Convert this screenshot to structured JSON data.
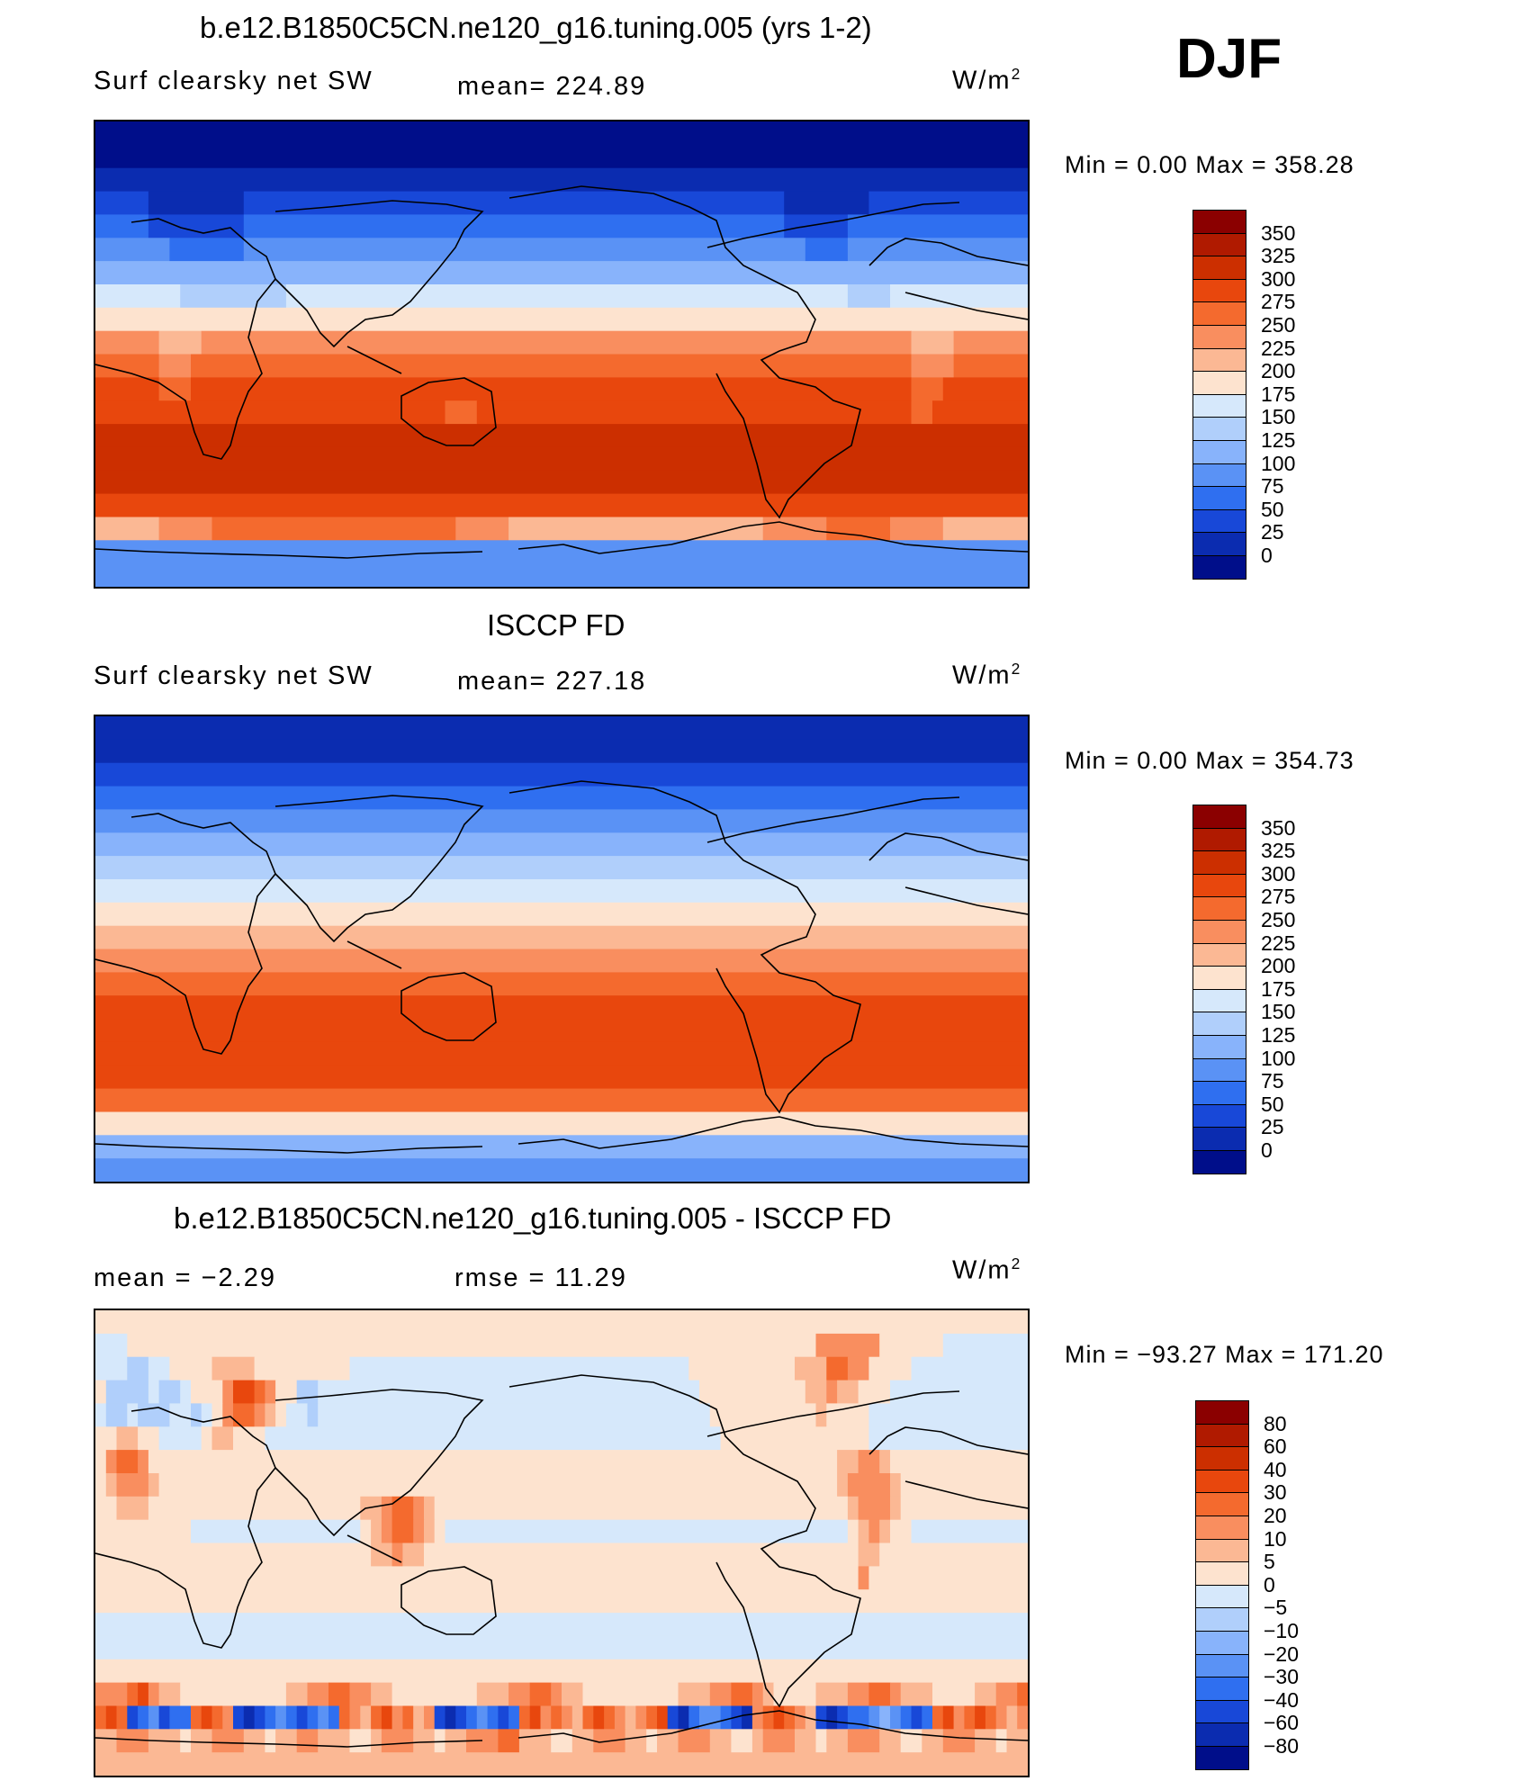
{
  "season": "DJF",
  "units": "W/m",
  "units_sup": "2",
  "panels": [
    {
      "title": "b.e12.B1850C5CN.ne120_g16.tuning.005 (yrs 1-2)",
      "variable": "Surf clearsky net SW",
      "stat": "mean=  224.89",
      "minmax": "Min  =       0.00  Max  =  358.28",
      "cbar_levels": [
        "350",
        "325",
        "300",
        "275",
        "250",
        "225",
        "200",
        "175",
        "150",
        "125",
        "100",
        "75",
        "50",
        "25",
        "0"
      ],
      "cbar_colors": [
        "#8b0000",
        "#b01a00",
        "#cc2f00",
        "#e8470d",
        "#f46a2e",
        "#f98e5f",
        "#fbb894",
        "#fde3cf",
        "#d6e8fb",
        "#b0cffb",
        "#88b3fb",
        "#5a92f5",
        "#2f6ff0",
        "#1848d8",
        "#0b2cb0",
        "#000e8a"
      ],
      "grid_rows": [
        "AAAAAAAAAAAAAAAAAAAAAAAAAAAAAAAAAAAAAAAAAAAAAAAAAAAAAAAAAAAAAAAAAAAAAAAAAAAAAAAAAAAAAAAA",
        "AAAAAAAAAAAAAAAAAAAAAAAAAAAAAAAAAAAAAAAAAAAAAAAAAAAAAAAAAAAAAAAAAAAAAAAAAAAAAAAAAAAAAAAA",
        "BBBBBBBBBBBBBBBBBBBBBBBBBBBBBBBBBBBBBBBBBBBBBBBBBBBBBBBBBBBBBBBBBBBBBBBBBBBBBBBBBBBBBBBB",
        "CCCCCBBBBBBBBBCCCCCCCCCCCCCCCCCCCCCCCCCCCCCCCCCCCCCCCCCCCCCCCCCCCBBBBBBBBCCCCCCCCCCCCCCC",
        "DDDDDCCCCCCCCCDDDDDDDDDDDDDDDDDDDDDDDDDDDDDDDDDDDDDDDDDDDDDDDDDDDCCCCCCDDDDDDDDDDDDDDDDD",
        "EEEEEEEDDDDDDDEEEEEEEEEEEEEEEEEEEEEEEEEEEEEEEEEEEEEEEEEEEEEEEEEEEEEDDDDEEEEEEEEEEEEEEEEEE",
        "FFFFFFFFFFFFFFFFFFFFFFFFFFFFFFFFFFFFFFFFFFFFFFFFFFFFFFFFFFFFFFFFFFFFFFFFFFFFFFFFFFFFFFFF",
        "HHHHHHHHGGGGGGGGGGHHHHHHHHHHHHHHHHHHHHHHHHHHHHHHHHHHHHHHHHHHHHHHHHHHHHHGGGGHHHHHHHHHHHHHH",
        "IIIIIIIIIIIIIIIIIIIIIIIIIIIIIIIIIIIIIIIIIIIIIIIIIIIIIIIIIIIIIIIIIIIIIIIIIIIIIIIIIIIIIIII",
        "KKKKKKJJJJKKKKKKKKKKKKKKKKKKKKKKKKKKKKKKKKKKKKKKKKKKKKKKKKKKKKKKKKKKKKKKKKKKKJJJJKKKKKKKKKK",
        "LLLLLLKKKLLLLLLLLLLLLLLLLLLLLLLLLLLLLLLLLLLLLLLLLLLLLLLLLLLLLLLLLLLLLLLLLLLLLKKKKLLLLLLLLLL",
        "MMMMMMLLLMMMMMMMMMMMMMMMMMMMMMMMMMMMMMMMMMMMMMMMMMMMMMMMMMMMMMMMMMMMMMMMMMMMMLLLMMMMMMMMMMMM",
        "MMMMMMMMMMMMMMMMMMMMMMMMMMMMMMMMMLLLMMMMMMMMMMMMMMMMMMMMMMMMMMMMMMMMMMMMMMMMMLLMMMMMMMMMMMMM",
        "NNNNNNNNNNNNNNNNNNNNNNNNNNNNNNNNNNNNNNNNNNNNNNNNNNNNNNNNNNNNNNNNNNNNNNNNNNNNNNNNNNNNNNNN",
        "NNNNNNNNNNNNNNNNNNNNNNNNNNNNNNNNNNNNNNNNNNNNNNNNNNNNNNNNNNNNNNNNNNNNNNNNNNNNNNNNNNNNNNNN",
        "NNNNNNNNNNNNNNNNNNNNNNNNNNNNNNNNNNNNNNNNNNNNNNNNNNNNNNNNNNNNNNNNNNNNNNNNNNNNNNNNNNNNNNNN",
        "MMMMMMMMMMMMMMMMMMMMMMMMMMMMMMMMMMMMMMMMMMMMMMMMMMMMMMMMMMMMMMMMMMMMMMMMMMMMMMMMMMMMMMMM",
        "JJJJJJKKKKKLLLLLLLLLLLLLLLLLLLLLLLKKKKKJJJJJJJJJJJJJJJJJJJJJJJJKKKKKKLLLLLLKKKKKJJJJJJJJJ",
        "EEEEEEEEEEEEEEEEEEEEEEEEEEEEEEEEEEEEEEEEEEEEEEEEEEEEEEEEEEEEEEEEEEEEEEEEEEEEEEEEEEEEEEEE",
        "EEEEEEEEEEEEEEEEEEEEEEEEEEEEEEEEEEEEEEEEEEEEEEEEEEEEEEEEEEEEEEEEEEEEEEEEEEEEEEEEEEEEEEEE"
      ]
    },
    {
      "title": "ISCCP FD",
      "variable": "Surf clearsky net SW",
      "stat": "mean=  227.18",
      "minmax": "Min  =       0.00  Max  =  354.73",
      "cbar_levels": [
        "350",
        "325",
        "300",
        "275",
        "250",
        "225",
        "200",
        "175",
        "150",
        "125",
        "100",
        "75",
        "50",
        "25",
        "0"
      ],
      "cbar_colors": [
        "#8b0000",
        "#b01a00",
        "#cc2f00",
        "#e8470d",
        "#f46a2e",
        "#f98e5f",
        "#fbb894",
        "#fde3cf",
        "#d6e8fb",
        "#b0cffb",
        "#88b3fb",
        "#5a92f5",
        "#2f6ff0",
        "#1848d8",
        "#0b2cb0",
        "#000e8a"
      ],
      "grid_rows": [
        "BBBBBBBBBBBBBBBBBBBBBBBBBBBBBBBBBBBBBBBBBBBBBBBBBBBBBBBBBBBBBBBBBBBBBBBBBBBBBBBBBBBBBBBB",
        "BBBBBBBBBBBBBBBBBBBBBBBBBBBBBBBBBBBBBBBBBBBBBBBBBBBBBBBBBBBBBBBBBBBBBBBBBBBBBBBBBBBBBBBB",
        "CCCCCCCCCCCCCCCCCCCCCCCCCCCCCCCCCCCCCCCCCCCCCCCCCCCCCCCCCCCCCCCCCCCCCCCCCCCCCCCCCCCCCCCC",
        "DDDDDDDDDDDDDDDDDDDDDDDDDDDDDDDDDDDDDDDDDDDDDDDDDDDDDDDDDDDDDDDDDDDDDDDDDDDDDDDDDDDDDDDD",
        "EEEEEEEEEEEEEEEEEEEEEEEEEEEEEEEEEEEEEEEEEEEEEEEEEEEEEEEEEEEEEEEEEEEEEEEEEEEEEEEEEEEEEEEE",
        "FFFFFFFFFFFFFFFFFFFFFFFFFFFFFFFFFFFFFFFFFFFFFFFFFFFFFFFFFFFFFFFFFFFFFFFFFFFFFFFFFFFFFFFF",
        "GGGGGGGGGGGGGGGGGGGGGGGGGGGGGGGGGGGGGGGGGGGGGGGGGGGGGGGGGGGGGGGGGGGGGGGGGGGGGGGGGGGGGGGG",
        "HHHHHHHHHHHHHHHHHHHHHHHHHHHHHHHHHHHHHHHHHHHHHHHHHHHHHHHHHHHHHHHHHHHHHHHHHHHHHHHHHHHHHHHH",
        "IIIIIIIIIIIIIIIIIIIIIIIIIIIIIIIIIIIIIIIIIIIIIIIIIIIIIIIIIIIIIIIIIIIIIIIIIIIIIIIIIIIIIIII",
        "JJJJJJJJJJJJJJJJJJJJJJJJJJJJJJJJJJJJJJJJJJJJJJJJJJJJJJJJJJJJJJJJJJJJJJJJJJJJJJJJJJJJJJJJ",
        "KKKKKKKKKKKKKKKKKKKKKKKKKKKKKKKKKKKKKKKKKKKKKKKKKKKKKKKKKKKKKKKKKKKKKKKKKKKKKKKKKKKKKKKK",
        "LLLLLLLLLLLLLLLLLLLLLLLLLLLLLLLLLLLLLLLLLLLLLLLLLLLLLLLLLLLLLLLLLLLLLLLLLLLLLLLLLLLLLLLL",
        "MMMMMMMMMMMMMMMMMMMMMMMMMMMMMMMMMMMMMMMMMMMMMMMMMMMMMMMMMMMMMMMMMMMMMMMMMMMMMMMMMMMMMMMM",
        "MMMMMMMMMMMMMMMMMMMMMMMMMMMMMMMMMMMMMMMMMMMMMMMMMMMMMMMMMMMMMMMMMMMMMMMMMMMMMMMMMMMMMMMM",
        "MMMMMMMMMMMMMMMMMMMMMMMMMMMMMMMMMMMMMMMMMMMMMMMMMMMMMMMMMMMMMMMMMMMMMMMMMMMMMMMMMMMMMMMM",
        "MMMMMMMMMMMMMMMMMMMMMMMMMMMMMMMMMMMMMMMMMMMMMMMMMMMMMMMMMMMMMMMMMMMMMMMMMMMMMMMMMMMMMMMM",
        "LLLLLLLLLLLLLLLLLLLLLLLLLLLLLLLLLLLLLLLLLLLLLLLLLLLLLLLLLLLLLLLLLLLLLLLLLLLLLLLLLLLLLLLL",
        "IIIIIIIIIIIIIIIIIIIIIIIIIIIIIIIIIIIIIIIIIIIIIIIIIIIIIIIIIIIIIIIIIIIIIIIIIIIIIIIIIIIIIIII",
        "FFFFFFFFFFFFFFFFFFFFFFFFFFFFFFFFFFFFFFFFFFFFFFFFFFFFFFFFFFFFFFFFFFFFFFFFFFFFFFFFFFFFFFFF",
        "EEEEEEEEEEEEEEEEEEEEEEEEEEEEEEEEEEEEEEEEEEEEEEEEEEEEEEEEEEEEEEEEEEEEEEEEEEEEEEEEEEEEEEEE"
      ]
    },
    {
      "title": "b.e12.B1850C5CN.ne120_g16.tuning.005 - ISCCP FD",
      "variable": "mean  =    −2.29",
      "stat": "rmse  =    11.29",
      "minmax": "Min  =  −93.27  Max  =  171.20",
      "cbar_levels": [
        "80",
        "60",
        "40",
        "30",
        "20",
        "10",
        "5",
        "0",
        "−5",
        "−10",
        "−20",
        "−30",
        "−40",
        "−60",
        "−80"
      ],
      "cbar_colors": [
        "#8b0000",
        "#b01a00",
        "#cc2f00",
        "#e8470d",
        "#f46a2e",
        "#f98e5f",
        "#fbb894",
        "#fde3cf",
        "#d6e8fb",
        "#b0cffb",
        "#88b3fb",
        "#5a92f5",
        "#2f6ff0",
        "#1848d8",
        "#0b2cb0",
        "#000e8a"
      ],
      "grid_rows": [
        "IIIIIIIIIIIIIIIIIIIIIIIIIIIIIIIIIIIIIIIIIIIIIIIIIIIIIIIIIIIIIIIIIIIIIIIIIIIIIIIIIIIIIIII",
        "HHHIIIIIIIIIIIIIIIIIIIIIIIIIIIIIIIIIIIIIIIIIIIIIIIIIIIIIIIIIIIIIIIIIKKKKKKIIIIIIHHHHHHHH",
        "HHHGGHHIIIIJJJJIIIIIIIIIHHHHHHHHHHHHHHHHHHHHHHHHHHHHHHHHIIIIIIIIIIJJJLLKKIIIIHHHHHHHHHHH",
        "IGGGGHGGHIIIKMMLKIIGGHHHHHHHHHHHHHHHHHHHHHHHHHHHHHHHHHHHHIIIIIIIIIIJJKJJIIIHHHHHHHHHHHHH",
        "HGGHGGGHHGHIKLLKJIHHGHHHHHHHHHHHHHHHHHHHHHHHHHHHHHHHHHHHHHIIIIIIIIIIJIIIIHHHHHHHHHHHHHHHH",
        "IIJJIIHHHHIJJIIIHHHHHHHHHHHHHHHHHHHHHHHHHHHHHHHHHHHHHHHHHHHIIIIIIIIIIIIIIHHHHHHHHHHHHHHHH",
        "IKLLKIIIIIIIIIIIIIIIIIIIIIIIIIIIIIIIIIIIIIIIIIIIIIIIIIIIIIIIIIIIIIIIIIJJKKJIIIIIIIIIIIIII",
        "IJKKKJIIIIIIIIIIIIIIIIIIIIIIIIIIIIIIIIIIIIIIIIIIIIIIIIIIIIIIIIIIIIIIIIJKKKKJIIIIIIIIIIIIII",
        "IIJJJIIIIIIIIIIIIIIIIIIIIJJKLLKJIIIIIIIIIIIIIIIIIIIIIIIIIIIIIIIIIIIIIIIJKKKJIIIIIIIIIIIIII",
        "IIIIIIIIIHHHHHHHHHHHHHHHHIJKLLKJIHHHHHHHHHHHHHHHHHHHHHHHHHHHHHHHHHHHHHHIJKJIIHHHHHHHHHHHHH",
        "IIIIIIIIIIIIIIIIIIIIIIIIIIJJKJJIIIIIIIIIIIIIIIIIIIIIIIIIIIIIIIIIIIIIIIIIJJIIIIIIIIIIIIIIII",
        "IIIIIIIIIIIIIIIIIIIIIIIIIIIIIIIIIIIIIIIIIIIIIIIIIIIIIIIIIIIIIIIIIIIIIIIIKIIIIIIIIIIIIIIIII",
        "IIIIIIIIIIIIIIIIIIIIIIIIIIIIIIIIIIIIIIIIIIIIIIIIIIIIIIIIIIIIIIIIIIIIIIIIIIIIIIIIIIIIIIIII",
        "HHHHHHHHHHHHHHHHHHHHHHHHHHHHHHHHHHHHHHHHHHHHHHHHHHHHHHHHHHHHHHHHHHHHHHHHHHHHHHHHHHHHHHHH",
        "HHHHHHHHHHHHHHHHHHHHHHHHHHHHHHHHHHHHHHHHHHHHHHHHHHHHHHHHHHHHHHHHHHHHHHHHHHHHHHHHHHHHHHHH",
        "IIIIIIIIIIIIIIIIIIIIIIIIIIIIIIIIIIIIIIIIIIIIIIIIIIIIIIIIIIIIIIIIIIIIIIIIIIIIIIIIIIIIIIII",
        "KKKLMKJJIIIIIIIIIIJJKKLLKKJJIIIIIIIIJJJKKLLKJJIIIIIIIIIJJJKKLLKJIIIIJJJKKLLKJJJIIIIJJKKLL",
        "LMLCDECDDLMLKCBCDEDCDEDLKJLMKLJKCBCDEDCDLMKLKJLMLKJKLMCBDEEDCBKLMLKJCBCDDEFEDCDLMKLMLKJKL",
        "JJKKKJJJIJJKKKJJIJJKKJJJIIJKKKJJIJJKKKLLJJJIIJJKKKJJIJJKKKJJIIJKKKJJIJJKKKJJIIJJKKKJJIJJ",
        "JJJJJJJJJJJJJJJJJJJJJJJJJJJJJJJJJJJJJJJJJJJJJJJJJJJJJJJJJJJJJJJJJJJJJJJJJJJJJJJJJJJJJJJJ"
      ]
    }
  ]
}
